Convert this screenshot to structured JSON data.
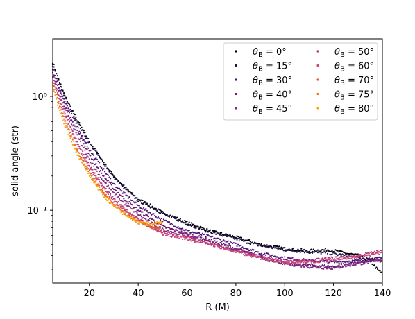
{
  "chart_data": {
    "type": "scatter",
    "xlabel": "R (M)",
    "ylabel": "solid angle (str)",
    "xlim": [
      5,
      140
    ],
    "ylim": [
      0.023,
      3.2
    ],
    "yscale": "log",
    "xticks": [
      20,
      40,
      60,
      80,
      100,
      120,
      140
    ],
    "xtick_labels": [
      "20",
      "40",
      "60",
      "80",
      "100",
      "120",
      "140"
    ],
    "yticks": [
      0.1,
      1
    ],
    "ytick_labels": [
      "10⁻¹",
      "10⁰"
    ],
    "legend_placement": "top-right",
    "series": [
      {
        "name": "θB = 0°",
        "label_main": "θ",
        "label_sub": "B",
        "label_rest": " = 0°",
        "color": "#000004",
        "x": [
          5,
          7,
          10,
          15,
          20,
          25,
          30,
          35,
          40,
          45,
          50,
          60,
          70,
          80,
          90,
          100,
          110,
          118,
          125,
          130,
          135,
          138,
          140
        ],
        "y": [
          2.0,
          1.5,
          1.0,
          0.62,
          0.4,
          0.28,
          0.2,
          0.155,
          0.125,
          0.11,
          0.095,
          0.078,
          0.065,
          0.058,
          0.05,
          0.046,
          0.044,
          0.045,
          0.042,
          0.04,
          0.036,
          0.03,
          0.028
        ]
      },
      {
        "name": "θB = 15°",
        "label_main": "θ",
        "label_sub": "B",
        "label_rest": " = 15°",
        "color": "#1c1044",
        "x": [
          5,
          7,
          10,
          15,
          20,
          25,
          30,
          35,
          40,
          45,
          50,
          60,
          70,
          80,
          90,
          100,
          110,
          118,
          125,
          130,
          135,
          140
        ],
        "y": [
          1.9,
          1.45,
          0.98,
          0.6,
          0.39,
          0.275,
          0.195,
          0.152,
          0.122,
          0.108,
          0.094,
          0.076,
          0.064,
          0.056,
          0.049,
          0.045,
          0.043,
          0.042,
          0.04,
          0.038,
          0.037,
          0.036
        ]
      },
      {
        "name": "θB = 30°",
        "label_main": "θ",
        "label_sub": "B",
        "label_rest": " = 30°",
        "color": "#4f127b",
        "x": [
          5,
          7,
          10,
          15,
          20,
          25,
          30,
          35,
          40,
          45,
          50,
          60,
          70,
          80,
          90,
          100,
          110,
          120,
          130,
          140
        ],
        "y": [
          1.8,
          1.35,
          0.9,
          0.55,
          0.34,
          0.24,
          0.17,
          0.135,
          0.11,
          0.095,
          0.082,
          0.066,
          0.058,
          0.05,
          0.042,
          0.038,
          0.036,
          0.035,
          0.036,
          0.038
        ]
      },
      {
        "name": "θB = 40°",
        "label_main": "θ",
        "label_sub": "B",
        "label_rest": " = 40°",
        "color": "#6a176e",
        "x": [
          5,
          7,
          10,
          15,
          20,
          25,
          30,
          35,
          40,
          45,
          50,
          60,
          70,
          80,
          90,
          100,
          110,
          120,
          130,
          140
        ],
        "y": [
          1.7,
          1.25,
          0.85,
          0.5,
          0.31,
          0.21,
          0.155,
          0.122,
          0.1,
          0.085,
          0.072,
          0.062,
          0.054,
          0.046,
          0.039,
          0.034,
          0.033,
          0.032,
          0.035,
          0.037
        ]
      },
      {
        "name": "θB = 45°",
        "label_main": "θ",
        "label_sub": "B",
        "label_rest": " = 45°",
        "color": "#822681",
        "x": [
          5,
          7,
          10,
          15,
          20,
          25,
          30,
          35,
          40,
          45,
          50,
          60,
          70,
          80,
          90,
          100,
          110,
          120,
          130,
          140
        ],
        "y": [
          1.6,
          1.15,
          0.78,
          0.45,
          0.28,
          0.19,
          0.14,
          0.112,
          0.092,
          0.078,
          0.068,
          0.06,
          0.052,
          0.045,
          0.038,
          0.034,
          0.032,
          0.031,
          0.034,
          0.036
        ]
      },
      {
        "name": "θB = 50°",
        "label_main": "θ",
        "label_sub": "B",
        "label_rest": " = 50°",
        "color": "#b5367a",
        "x": [
          5,
          7,
          10,
          15,
          20,
          25,
          30,
          35,
          40,
          45,
          50,
          60,
          70,
          80,
          90,
          100,
          110,
          120,
          130,
          140
        ],
        "y": [
          1.5,
          1.1,
          0.72,
          0.4,
          0.25,
          0.17,
          0.125,
          0.1,
          0.085,
          0.072,
          0.064,
          0.058,
          0.05,
          0.044,
          0.039,
          0.036,
          0.036,
          0.038,
          0.04,
          0.044
        ]
      },
      {
        "name": "θB = 60°",
        "label_main": "θ",
        "label_sub": "B",
        "label_rest": " = 60°",
        "color": "#cb4678",
        "x": [
          5,
          7,
          10,
          15,
          20,
          25,
          30,
          35,
          40,
          45,
          50,
          60,
          70,
          80,
          90,
          100,
          110,
          120,
          130,
          140
        ],
        "y": [
          1.45,
          1.05,
          0.68,
          0.38,
          0.24,
          0.165,
          0.12,
          0.098,
          0.083,
          0.07,
          0.062,
          0.056,
          0.05,
          0.043,
          0.038,
          0.035,
          0.035,
          0.037,
          0.039,
          0.042
        ]
      },
      {
        "name": "θB = 70°",
        "label_main": "θ",
        "label_sub": "B",
        "label_rest": " = 70°",
        "color": "#e55c30",
        "x": [
          5,
          7,
          10,
          15,
          20,
          25,
          30,
          35,
          40,
          45,
          50
        ],
        "y": [
          1.35,
          0.95,
          0.62,
          0.34,
          0.22,
          0.15,
          0.115,
          0.095,
          0.08,
          0.072,
          0.068
        ]
      },
      {
        "name": "θB = 75°",
        "label_main": "θ",
        "label_sub": "B",
        "label_rest": " = 75°",
        "color": "#f37819",
        "x": [
          5,
          7,
          10,
          15,
          20,
          25,
          30,
          35,
          40,
          45,
          50
        ],
        "y": [
          1.25,
          0.9,
          0.6,
          0.33,
          0.21,
          0.145,
          0.112,
          0.092,
          0.078,
          0.075,
          0.078
        ]
      },
      {
        "name": "θB = 80°",
        "label_main": "θ",
        "label_sub": "B",
        "label_rest": " = 80°",
        "color": "#fca50a",
        "x": [
          5,
          7,
          10,
          15,
          20,
          25,
          30,
          35,
          40,
          45,
          50
        ],
        "y": [
          1.2,
          0.85,
          0.55,
          0.31,
          0.2,
          0.14,
          0.108,
          0.09,
          0.078,
          0.076,
          0.08
        ]
      }
    ]
  }
}
